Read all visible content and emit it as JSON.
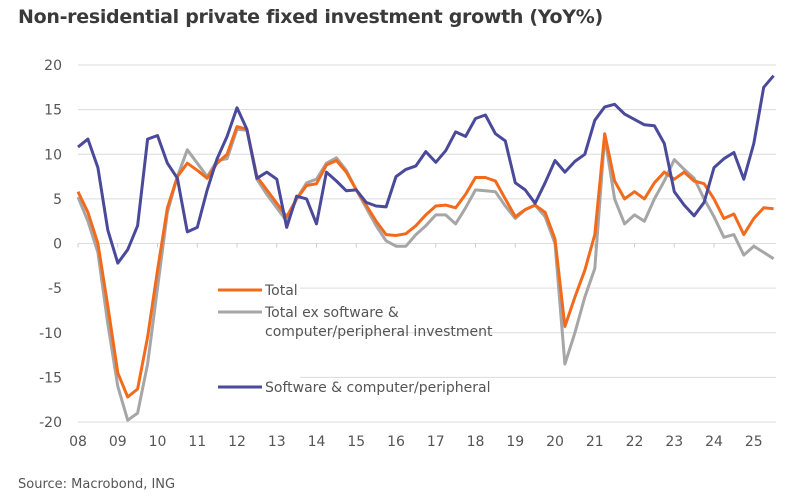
{
  "chart_data": {
    "type": "line",
    "title": "Non-residential private fixed investment growth (YoY%)",
    "source": "Source: Macrobond, ING",
    "xlabel": "",
    "ylabel": "",
    "x_start": 2008.0,
    "x_step": 0.25,
    "ylim": [
      -20,
      20
    ],
    "xlim": [
      2008,
      2025.6
    ],
    "yticks": [
      20,
      15,
      10,
      5,
      0,
      -5,
      -10,
      -15,
      -20
    ],
    "xticks": [
      "08",
      "09",
      "10",
      "11",
      "12",
      "13",
      "14",
      "15",
      "16",
      "17",
      "18",
      "19",
      "20",
      "21",
      "22",
      "23",
      "24",
      "25"
    ],
    "grid": true,
    "legend_placement": "center-left",
    "series": [
      {
        "name": "Total",
        "color": "#f26b1d",
        "values": [
          5.8,
          3.5,
          0,
          -7,
          -14.5,
          -17.2,
          -16.3,
          -10.5,
          -3,
          4,
          7.5,
          9,
          8.2,
          7.3,
          9,
          10,
          13.1,
          12.8,
          7.5,
          6,
          4.5,
          3,
          5,
          6.5,
          6.7,
          8.8,
          9.3,
          8,
          6,
          4.3,
          2.5,
          1,
          0.9,
          1.1,
          2,
          3.2,
          4.2,
          4.3,
          4,
          5.5,
          7.4,
          7.4,
          7,
          5,
          3,
          3.8,
          4.3,
          3.5,
          0.5,
          -9.3,
          -6,
          -3,
          1,
          12.3,
          7,
          5,
          5.8,
          5,
          6.8,
          8,
          7.2,
          8,
          7,
          6.7,
          5,
          2.8,
          3.3,
          1,
          2.8,
          4,
          3.9
        ]
      },
      {
        "name": "Total ex software & computer/peripheral investment",
        "color": "#a6a6a6",
        "values": [
          5.2,
          2.5,
          -1,
          -9,
          -16,
          -19.8,
          -19,
          -13.5,
          -5,
          3.5,
          7.5,
          10.5,
          9,
          7.5,
          9.3,
          9.5,
          12.8,
          12.7,
          7.2,
          5.5,
          4,
          2.5,
          5,
          6.8,
          7.2,
          9,
          9.6,
          8.2,
          6,
          4,
          2,
          0.3,
          -0.3,
          -0.3,
          1,
          2,
          3.2,
          3.2,
          2.2,
          4,
          6,
          5.9,
          5.8,
          4.2,
          2.8,
          3.8,
          4.3,
          3,
          0,
          -13.5,
          -10,
          -6,
          -2.8,
          12,
          5,
          2.2,
          3.2,
          2.5,
          5,
          7,
          9.4,
          8.3,
          7.3,
          5,
          3,
          0.7,
          1,
          -1.3,
          -0.3,
          -1,
          -1.7
        ]
      },
      {
        "name": "Software & computer/peripheral",
        "color": "#4b4a9a",
        "values": [
          10.8,
          11.7,
          8.5,
          1.5,
          -2.2,
          -0.7,
          2,
          11.7,
          12.1,
          9,
          7.3,
          1.3,
          1.8,
          6,
          9.5,
          12,
          15.2,
          12.8,
          7.3,
          8,
          7.2,
          1.8,
          5.3,
          5,
          2.2,
          8,
          7,
          5.9,
          6,
          4.6,
          4.2,
          4.1,
          7.5,
          8.3,
          8.7,
          10.3,
          9.1,
          10.4,
          12.5,
          12,
          14,
          14.4,
          12.3,
          11.5,
          6.8,
          6,
          4.5,
          6.8,
          9.3,
          8,
          9.2,
          10,
          13.8,
          15.3,
          15.6,
          14.5,
          13.9,
          13.3,
          13.2,
          11.2,
          5.8,
          4.3,
          3.1,
          4.6,
          8.5,
          9.5,
          10.2,
          7.2,
          11.2,
          17.5,
          18.8
        ]
      }
    ]
  }
}
